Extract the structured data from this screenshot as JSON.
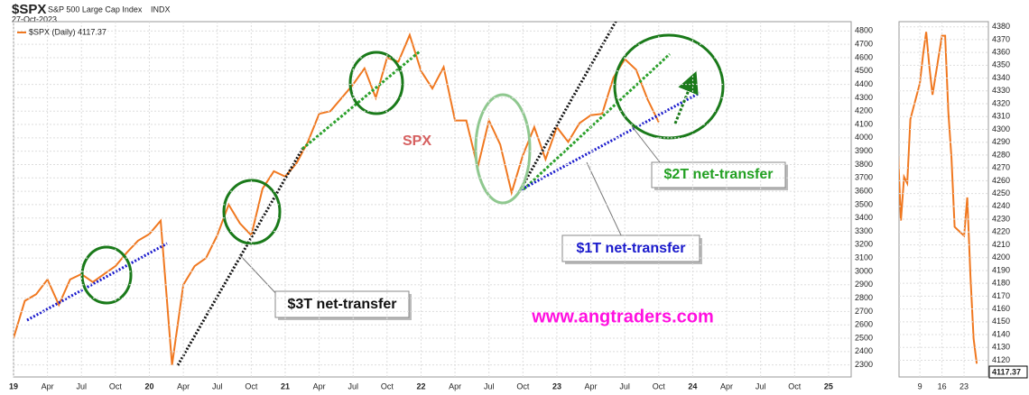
{
  "header": {
    "symbol": "$SPX",
    "name": "S&P 500 Large Cap Index",
    "exchange": "INDX",
    "date": "27-Oct-2023"
  },
  "chart_data": [
    {
      "type": "line",
      "x": [
        "2019-01",
        "2019-02",
        "2019-03",
        "2019-04",
        "2019-05",
        "2019-06",
        "2019-07",
        "2019-08",
        "2019-09",
        "2019-10",
        "2019-11",
        "2019-12",
        "2020-01",
        "2020-02",
        "2020-03",
        "2020-04",
        "2020-05",
        "2020-06",
        "2020-07",
        "2020-08",
        "2020-09",
        "2020-10",
        "2020-11",
        "2020-12",
        "2021-01",
        "2021-02",
        "2021-03",
        "2021-04",
        "2021-05",
        "2021-06",
        "2021-07",
        "2021-08",
        "2021-09",
        "2021-10",
        "2021-11",
        "2021-12",
        "2022-01",
        "2022-02",
        "2022-03",
        "2022-04",
        "2022-05",
        "2022-06",
        "2022-07",
        "2022-08",
        "2022-09",
        "2022-10",
        "2022-11",
        "2022-12",
        "2023-01",
        "2023-02",
        "2023-03",
        "2023-04",
        "2023-05",
        "2023-06",
        "2023-07",
        "2023-08",
        "2023-09",
        "2023-10"
      ],
      "series": [
        {
          "name": "$SPX (Daily) 4117.37",
          "color": "#f07820",
          "values": [
            2500,
            2780,
            2830,
            2940,
            2750,
            2940,
            2980,
            2920,
            2980,
            3040,
            3140,
            3230,
            3280,
            3380,
            2300,
            2900,
            3040,
            3100,
            3270,
            3500,
            3360,
            3270,
            3620,
            3750,
            3710,
            3810,
            3970,
            4180,
            4200,
            4300,
            4400,
            4520,
            4300,
            4600,
            4570,
            4770,
            4500,
            4370,
            4530,
            4130,
            4130,
            3780,
            4130,
            3950,
            3590,
            3870,
            4080,
            3840,
            4080,
            3970,
            4110,
            4170,
            4180,
            4450,
            4590,
            4510,
            4290,
            4117.37
          ]
        }
      ],
      "xlim": [
        "2019-01",
        "2025-03"
      ],
      "xticks": [
        {
          "value": "2019-01",
          "label": "19"
        },
        {
          "value": "2019-04",
          "label": "Apr"
        },
        {
          "value": "2019-07",
          "label": "Jul"
        },
        {
          "value": "2019-10",
          "label": "Oct"
        },
        {
          "value": "2020-01",
          "label": "20"
        },
        {
          "value": "2020-04",
          "label": "Apr"
        },
        {
          "value": "2020-07",
          "label": "Jul"
        },
        {
          "value": "2020-10",
          "label": "Oct"
        },
        {
          "value": "2021-01",
          "label": "21"
        },
        {
          "value": "2021-04",
          "label": "Apr"
        },
        {
          "value": "2021-07",
          "label": "Jul"
        },
        {
          "value": "2021-10",
          "label": "Oct"
        },
        {
          "value": "2022-01",
          "label": "22"
        },
        {
          "value": "2022-04",
          "label": "Apr"
        },
        {
          "value": "2022-07",
          "label": "Jul"
        },
        {
          "value": "2022-10",
          "label": "Oct"
        },
        {
          "value": "2023-01",
          "label": "23"
        },
        {
          "value": "2023-04",
          "label": "Apr"
        },
        {
          "value": "2023-07",
          "label": "Jul"
        },
        {
          "value": "2023-10",
          "label": "Oct"
        },
        {
          "value": "2024-01",
          "label": "24"
        },
        {
          "value": "2024-04",
          "label": "Apr"
        },
        {
          "value": "2024-07",
          "label": "Jul"
        },
        {
          "value": "2024-10",
          "label": "Oct"
        },
        {
          "value": "2025-01",
          "label": "25"
        }
      ],
      "ylim": [
        2210,
        4870
      ],
      "yticks": [
        2300,
        2400,
        2500,
        2600,
        2700,
        2800,
        2900,
        3000,
        3100,
        3200,
        3300,
        3400,
        3500,
        3600,
        3700,
        3800,
        3900,
        4000,
        4100,
        4200,
        4300,
        4400,
        4500,
        4600,
        4700,
        4800
      ],
      "grid": true,
      "annotations": [
        "SPX",
        "$3T net-transfer",
        "$2T net-transfer",
        "$1T net-transfer",
        "www.angtraders.com"
      ]
    },
    {
      "type": "line",
      "x": [
        2,
        3,
        4,
        5,
        6,
        9,
        10,
        11,
        12,
        13,
        16,
        17,
        18,
        19,
        20,
        23,
        24,
        25,
        26,
        27
      ],
      "series": [
        {
          "color": "#f07820",
          "values": [
            4288,
            4229,
            4263,
            4258,
            4308,
            4336,
            4358,
            4376,
            4349,
            4327,
            4373,
            4373,
            4314,
            4278,
            4224,
            4217,
            4247,
            4186,
            4137,
            4117.37
          ]
        }
      ],
      "xlim": [
        2.4,
        30.7
      ],
      "xticks": [
        9,
        16,
        23
      ],
      "ylim": [
        4107,
        4384
      ],
      "yticks": [
        4120,
        4130,
        4140,
        4150,
        4160,
        4170,
        4180,
        4190,
        4200,
        4210,
        4220,
        4230,
        4240,
        4250,
        4260,
        4270,
        4280,
        4290,
        4300,
        4310,
        4320,
        4330,
        4340,
        4350,
        4360,
        4370,
        4380
      ],
      "grid": true
    }
  ]
}
